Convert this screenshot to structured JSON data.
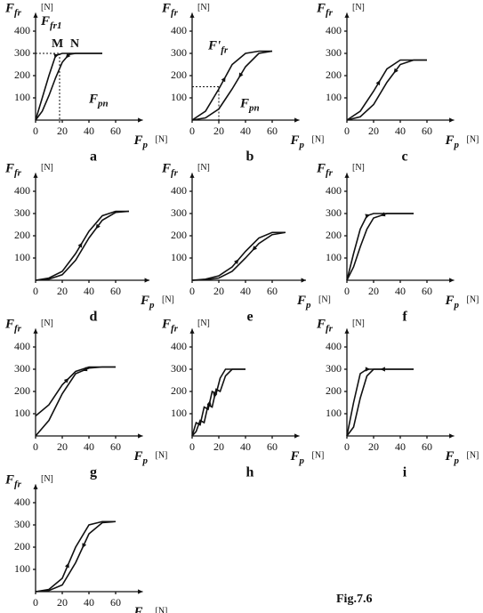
{
  "caption": "Fig.7.6",
  "chart_data": [
    {
      "type": "line",
      "title": "a",
      "ylabel": "F",
      "ylabel_sub": "fr",
      "yunit": "[N]",
      "xlabel": "F",
      "xlabel_sub": "p",
      "xunit": "[N]",
      "x": [
        0,
        5,
        10,
        15,
        20,
        25,
        30,
        40,
        50
      ],
      "series": [
        {
          "color": "#111",
          "values": [
            0,
            100,
            200,
            290,
            300,
            300,
            300,
            300,
            300
          ]
        },
        {
          "color": "#111",
          "values": [
            0,
            40,
            110,
            190,
            260,
            295,
            300,
            300,
            300
          ]
        }
      ],
      "xlim": [
        0,
        75
      ],
      "ylim": [
        0,
        450
      ],
      "xticks": [
        0,
        20,
        40,
        60
      ],
      "yticks": [
        100,
        200,
        300,
        400
      ],
      "guide": {
        "x": 18,
        "y": 300
      },
      "annotations": [
        {
          "text": "F",
          "sub": "fr1"
        },
        {
          "text": "M"
        },
        {
          "text": "N"
        },
        {
          "text": "F",
          "sub": "pn"
        }
      ]
    },
    {
      "type": "line",
      "title": "b",
      "ylabel": "F",
      "ylabel_sub": "fr",
      "yunit": "[N]",
      "xlabel": "F",
      "xlabel_sub": "p",
      "xunit": "[N]",
      "x": [
        0,
        10,
        20,
        30,
        40,
        50,
        60
      ],
      "series": [
        {
          "color": "#111",
          "values": [
            0,
            40,
            140,
            250,
            300,
            310,
            310
          ]
        },
        {
          "color": "#111",
          "values": [
            0,
            10,
            50,
            140,
            240,
            300,
            310
          ]
        }
      ],
      "xlim": [
        0,
        75
      ],
      "ylim": [
        0,
        450
      ],
      "xticks": [
        0,
        20,
        40,
        60
      ],
      "yticks": [
        100,
        200,
        300,
        400
      ],
      "guide": {
        "x": 20,
        "y": 150
      },
      "annotations": [
        {
          "text": "F'",
          "sub": "fr"
        },
        {
          "text": "F",
          "sub": "pn"
        }
      ]
    },
    {
      "type": "line",
      "title": "c",
      "ylabel": "F",
      "ylabel_sub": "fr",
      "yunit": "[N]",
      "xlabel": "F",
      "xlabel_sub": "p",
      "xunit": "[N]",
      "x": [
        0,
        10,
        20,
        30,
        40,
        50,
        60
      ],
      "series": [
        {
          "color": "#111",
          "values": [
            0,
            40,
            130,
            230,
            270,
            270,
            270
          ]
        },
        {
          "color": "#111",
          "values": [
            0,
            15,
            70,
            170,
            250,
            270,
            270
          ]
        }
      ],
      "xlim": [
        0,
        75
      ],
      "ylim": [
        0,
        450
      ],
      "xticks": [
        0,
        20,
        40,
        60
      ],
      "yticks": [
        100,
        200,
        300,
        400
      ]
    },
    {
      "type": "line",
      "title": "d",
      "ylabel": "F",
      "ylabel_sub": "fr",
      "yunit": "[N]",
      "xlabel": "F",
      "xlabel_sub": "p",
      "xunit": "[N]",
      "x": [
        0,
        10,
        20,
        30,
        40,
        50,
        60,
        70
      ],
      "series": [
        {
          "color": "#111",
          "values": [
            0,
            10,
            40,
            120,
            220,
            290,
            310,
            310
          ]
        },
        {
          "color": "#111",
          "values": [
            0,
            5,
            25,
            90,
            190,
            270,
            305,
            310
          ]
        }
      ],
      "xlim": [
        0,
        80
      ],
      "ylim": [
        0,
        450
      ],
      "xticks": [
        0,
        20,
        40,
        60
      ],
      "yticks": [
        100,
        200,
        300,
        400
      ]
    },
    {
      "type": "line",
      "title": "e",
      "ylabel": "F",
      "ylabel_sub": "fr",
      "yunit": "[N]",
      "xlabel": "F",
      "xlabel_sub": "p",
      "xunit": "[N]",
      "x": [
        0,
        10,
        20,
        30,
        40,
        50,
        60,
        70
      ],
      "series": [
        {
          "color": "#111",
          "values": [
            0,
            5,
            20,
            60,
            130,
            190,
            215,
            215
          ]
        },
        {
          "color": "#111",
          "values": [
            0,
            2,
            10,
            40,
            100,
            165,
            205,
            215
          ]
        }
      ],
      "xlim": [
        0,
        80
      ],
      "ylim": [
        0,
        450
      ],
      "xticks": [
        0,
        20,
        40,
        60
      ],
      "yticks": [
        100,
        200,
        300,
        400
      ]
    },
    {
      "type": "line",
      "title": "f",
      "ylabel": "F",
      "ylabel_sub": "fr",
      "yunit": "[N]",
      "xlabel": "F",
      "xlabel_sub": "p",
      "xunit": "[N]",
      "x": [
        0,
        5,
        10,
        15,
        20,
        30,
        40,
        50
      ],
      "series": [
        {
          "color": "#111",
          "values": [
            0,
            120,
            230,
            290,
            300,
            300,
            300,
            300
          ]
        },
        {
          "color": "#111",
          "values": [
            0,
            60,
            150,
            230,
            280,
            300,
            300,
            300
          ]
        }
      ],
      "xlim": [
        0,
        75
      ],
      "ylim": [
        0,
        450
      ],
      "xticks": [
        0,
        20,
        40,
        60
      ],
      "yticks": [
        100,
        200,
        300,
        400
      ]
    },
    {
      "type": "line",
      "title": "g",
      "ylabel": "F",
      "ylabel_sub": "fr",
      "yunit": "[N]",
      "xlabel": "F",
      "xlabel_sub": "p",
      "xunit": "[N]",
      "x": [
        0,
        10,
        20,
        30,
        40,
        50,
        60
      ],
      "series": [
        {
          "color": "#111",
          "values": [
            90,
            140,
            230,
            290,
            310,
            310,
            310
          ]
        },
        {
          "color": "#111",
          "values": [
            0,
            70,
            190,
            280,
            305,
            310,
            310
          ]
        }
      ],
      "xlim": [
        0,
        75
      ],
      "ylim": [
        0,
        450
      ],
      "xticks": [
        0,
        20,
        40,
        60
      ],
      "yticks": [
        100,
        200,
        300,
        400
      ]
    },
    {
      "type": "line",
      "title": "h",
      "ylabel": "F",
      "ylabel_sub": "fr",
      "yunit": "[N]",
      "xlabel": "F",
      "xlabel_sub": "p",
      "xunit": "[N]",
      "x": [
        0,
        3,
        6,
        9,
        12,
        15,
        18,
        21,
        25,
        30,
        40
      ],
      "series": [
        {
          "color": "#111",
          "values": [
            0,
            60,
            50,
            130,
            120,
            200,
            190,
            260,
            300,
            300,
            300
          ]
        },
        {
          "color": "#111",
          "values": [
            0,
            20,
            70,
            60,
            140,
            130,
            210,
            200,
            270,
            300,
            300
          ]
        }
      ],
      "xlim": [
        0,
        75
      ],
      "ylim": [
        0,
        450
      ],
      "xticks": [
        0,
        20,
        40,
        60
      ],
      "yticks": [
        100,
        200,
        300,
        400
      ]
    },
    {
      "type": "line",
      "title": "i",
      "ylabel": "F",
      "ylabel_sub": "fr",
      "yunit": "[N]",
      "xlabel": "F",
      "xlabel_sub": "p",
      "xunit": "[N]",
      "x": [
        0,
        5,
        10,
        15,
        20,
        30,
        40,
        50
      ],
      "series": [
        {
          "color": "#111",
          "values": [
            0,
            150,
            280,
            300,
            300,
            300,
            300,
            300
          ]
        },
        {
          "color": "#111",
          "values": [
            0,
            40,
            170,
            270,
            300,
            300,
            300,
            300
          ]
        }
      ],
      "xlim": [
        0,
        75
      ],
      "ylim": [
        0,
        450
      ],
      "xticks": [
        0,
        20,
        40,
        60
      ],
      "yticks": [
        100,
        200,
        300,
        400
      ]
    },
    {
      "type": "line",
      "ylabel": "F",
      "ylabel_sub": "fr",
      "yunit": "[N]",
      "xlabel": "F",
      "xlabel_sub": "p",
      "xunit": "[N]",
      "x": [
        0,
        10,
        20,
        30,
        40,
        50,
        60
      ],
      "series": [
        {
          "color": "#111",
          "values": [
            0,
            10,
            60,
            200,
            300,
            315,
            315
          ]
        },
        {
          "color": "#111",
          "values": [
            0,
            5,
            30,
            130,
            260,
            310,
            315
          ]
        }
      ],
      "xlim": [
        0,
        75
      ],
      "ylim": [
        0,
        450
      ],
      "xticks": [
        0,
        20,
        40,
        60
      ],
      "yticks": [
        100,
        200,
        300,
        400
      ]
    }
  ]
}
